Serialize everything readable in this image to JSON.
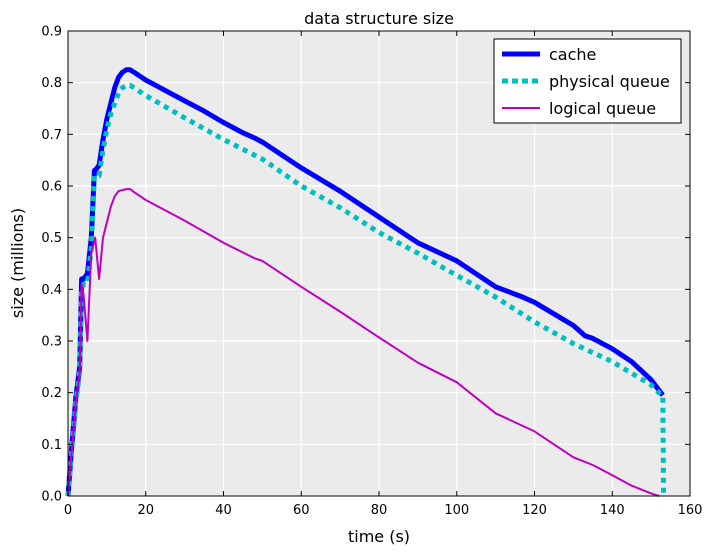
{
  "chart_data": {
    "type": "line",
    "title": "data structure size",
    "xlabel": "time (s)",
    "ylabel": "size (millions)",
    "xlim": [
      0,
      160
    ],
    "ylim": [
      0,
      0.9
    ],
    "xticks": [
      0,
      20,
      40,
      60,
      80,
      100,
      120,
      140,
      160
    ],
    "yticks": [
      0.0,
      0.1,
      0.2,
      0.3,
      0.4,
      0.5,
      0.6,
      0.7,
      0.8,
      0.9
    ],
    "xtick_labels": [
      "0",
      "20",
      "40",
      "60",
      "80",
      "100",
      "120",
      "140",
      "160"
    ],
    "ytick_labels": [
      "0.0",
      "0.1",
      "0.2",
      "0.3",
      "0.4",
      "0.5",
      "0.6",
      "0.7",
      "0.8",
      "0.9"
    ],
    "grid": true,
    "background": "#ebebeb",
    "legend_position": "top-right",
    "series": [
      {
        "name": "cache",
        "color": "#0000ff",
        "style": "solid-thick",
        "x": [
          0,
          1,
          2,
          3,
          3.5,
          4,
          5,
          6,
          6.8,
          7,
          8,
          9,
          10,
          11,
          12,
          13,
          14,
          15,
          16,
          17,
          20,
          25,
          30,
          35,
          40,
          45,
          48,
          50,
          60,
          70,
          80,
          90,
          100,
          110,
          117,
          120,
          130,
          133,
          135,
          140,
          145,
          150,
          153
        ],
        "y": [
          0.0,
          0.1,
          0.19,
          0.25,
          0.42,
          0.42,
          0.43,
          0.5,
          0.63,
          0.63,
          0.64,
          0.69,
          0.73,
          0.76,
          0.79,
          0.81,
          0.82,
          0.825,
          0.825,
          0.82,
          0.805,
          0.785,
          0.765,
          0.745,
          0.723,
          0.703,
          0.693,
          0.685,
          0.635,
          0.59,
          0.54,
          0.49,
          0.455,
          0.405,
          0.385,
          0.375,
          0.33,
          0.31,
          0.305,
          0.285,
          0.26,
          0.225,
          0.195
        ]
      },
      {
        "name": "physical queue",
        "color": "#00bfbf",
        "style": "dotted",
        "x": [
          0,
          1,
          2,
          3,
          3.5,
          4,
          5,
          6,
          6.8,
          7,
          8,
          9,
          10,
          11,
          12,
          13,
          14,
          15,
          16,
          17,
          20,
          30,
          40,
          50,
          60,
          70,
          80,
          90,
          100,
          110,
          120,
          130,
          140,
          150,
          152,
          153,
          153.2
        ],
        "y": [
          0.0,
          0.09,
          0.18,
          0.24,
          0.4,
          0.41,
          0.41,
          0.48,
          0.62,
          0.62,
          0.62,
          0.67,
          0.71,
          0.74,
          0.76,
          0.78,
          0.79,
          0.795,
          0.795,
          0.79,
          0.775,
          0.732,
          0.69,
          0.652,
          0.6,
          0.558,
          0.51,
          0.47,
          0.427,
          0.385,
          0.337,
          0.295,
          0.26,
          0.215,
          0.2,
          0.195,
          0.0
        ]
      },
      {
        "name": "logical queue",
        "color": "#bf00bf",
        "style": "solid",
        "x": [
          0,
          1,
          2,
          3,
          3.5,
          4,
          5,
          6,
          7,
          8,
          9,
          10,
          11,
          12,
          13,
          14,
          15,
          16,
          17,
          20,
          30,
          40,
          48,
          50,
          60,
          70,
          80,
          90,
          100,
          110,
          120,
          130,
          135,
          140,
          145,
          150,
          152
        ],
        "y": [
          0.0,
          0.09,
          0.18,
          0.24,
          0.41,
          0.39,
          0.3,
          0.47,
          0.5,
          0.42,
          0.5,
          0.53,
          0.56,
          0.58,
          0.59,
          0.592,
          0.594,
          0.594,
          0.588,
          0.573,
          0.533,
          0.49,
          0.46,
          0.455,
          0.405,
          0.357,
          0.307,
          0.258,
          0.22,
          0.16,
          0.125,
          0.075,
          0.06,
          0.04,
          0.02,
          0.005,
          0.0
        ]
      }
    ]
  }
}
